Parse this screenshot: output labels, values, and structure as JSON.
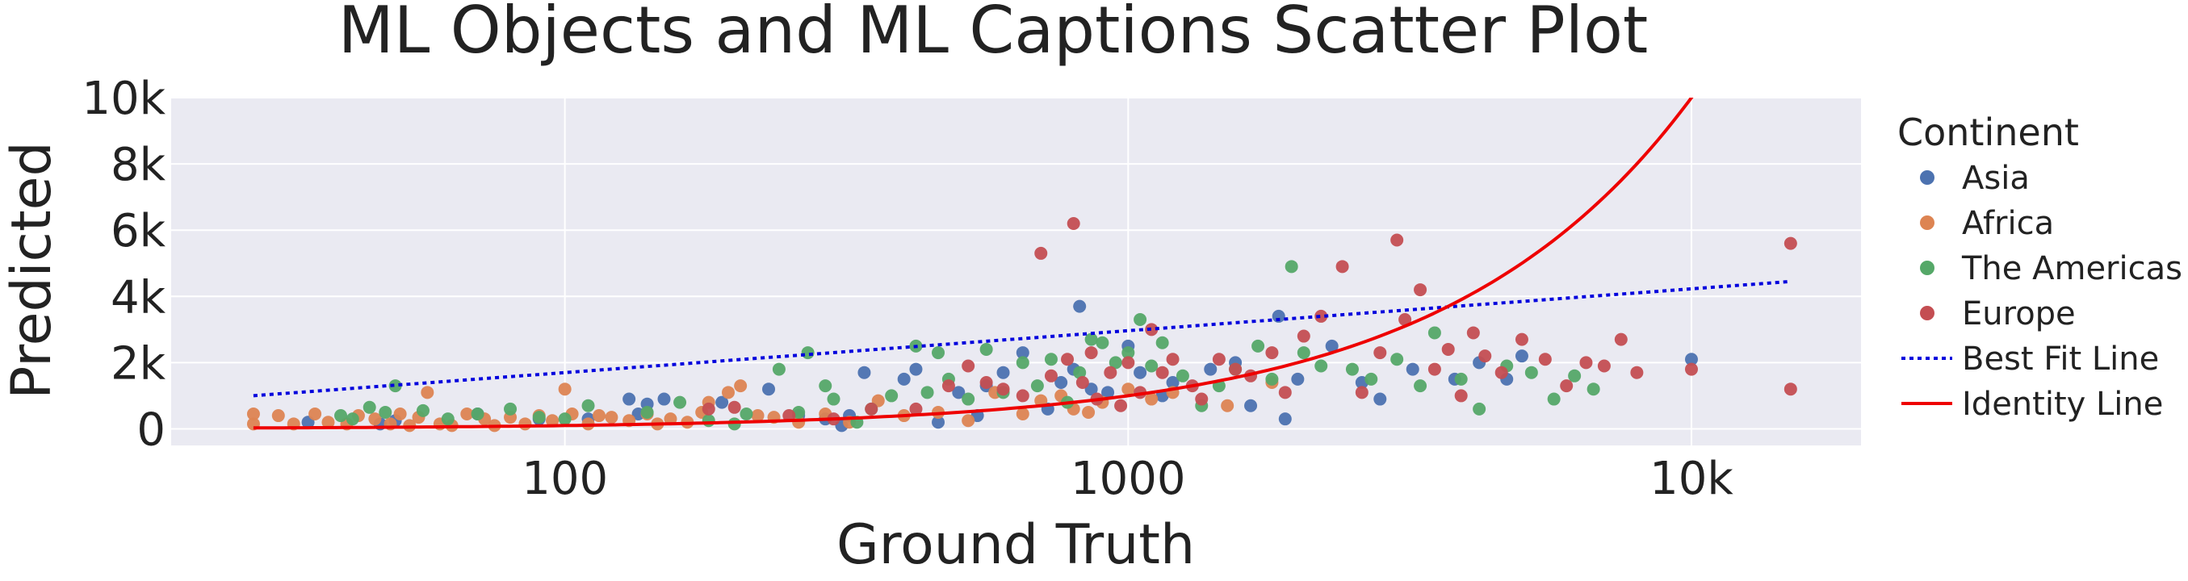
{
  "chart_data": {
    "type": "scatter",
    "title": "ML Objects and ML Captions Scatter Plot",
    "xlabel": "Ground Truth",
    "ylabel": "Predicted",
    "x_scale": "log",
    "xlim": [
      20,
      20000
    ],
    "ylim": [
      -500,
      10000
    ],
    "x_ticks": [
      {
        "value": 100,
        "label": "100"
      },
      {
        "value": 1000,
        "label": "1000"
      },
      {
        "value": 10000,
        "label": "10k"
      }
    ],
    "y_ticks": [
      {
        "value": 0,
        "label": "0"
      },
      {
        "value": 2000,
        "label": "2k"
      },
      {
        "value": 4000,
        "label": "4k"
      },
      {
        "value": 6000,
        "label": "6k"
      },
      {
        "value": 8000,
        "label": "8k"
      },
      {
        "value": 10000,
        "label": "10k"
      }
    ],
    "grid": true,
    "background": "#eaeaf2",
    "legend": {
      "title": "Continent",
      "placement": "right",
      "entries": [
        {
          "label": "Asia",
          "kind": "marker",
          "color": "#4c72b0"
        },
        {
          "label": "Africa",
          "kind": "marker",
          "color": "#dd8452"
        },
        {
          "label": "The Americas",
          "kind": "marker",
          "color": "#55a868"
        },
        {
          "label": "Europe",
          "kind": "marker",
          "color": "#c44e52"
        },
        {
          "label": "Best Fit Line",
          "kind": "dotted-line",
          "color": "#0000dd"
        },
        {
          "label": "Identity Line",
          "kind": "solid-line",
          "color": "#ee0000"
        }
      ]
    },
    "series": [
      {
        "name": "Asia",
        "color": "#4c72b0",
        "points": [
          [
            35,
            200
          ],
          [
            47,
            150
          ],
          [
            50,
            250
          ],
          [
            70,
            450
          ],
          [
            90,
            300
          ],
          [
            110,
            300
          ],
          [
            130,
            900
          ],
          [
            135,
            450
          ],
          [
            140,
            750
          ],
          [
            150,
            900
          ],
          [
            190,
            800
          ],
          [
            230,
            1200
          ],
          [
            260,
            400
          ],
          [
            290,
            300
          ],
          [
            310,
            100
          ],
          [
            320,
            400
          ],
          [
            340,
            1700
          ],
          [
            400,
            1500
          ],
          [
            420,
            1800
          ],
          [
            460,
            200
          ],
          [
            500,
            1100
          ],
          [
            540,
            400
          ],
          [
            560,
            1300
          ],
          [
            600,
            1700
          ],
          [
            650,
            2300
          ],
          [
            720,
            600
          ],
          [
            760,
            1400
          ],
          [
            800,
            1800
          ],
          [
            820,
            3700
          ],
          [
            860,
            1200
          ],
          [
            920,
            1100
          ],
          [
            1000,
            2500
          ],
          [
            1050,
            1700
          ],
          [
            1150,
            1000
          ],
          [
            1200,
            1400
          ],
          [
            1400,
            1800
          ],
          [
            1550,
            2000
          ],
          [
            1650,
            700
          ],
          [
            1850,
            3400
          ],
          [
            1900,
            300
          ],
          [
            2000,
            1500
          ],
          [
            2300,
            2500
          ],
          [
            2600,
            1400
          ],
          [
            2800,
            900
          ],
          [
            3200,
            1800
          ],
          [
            3800,
            1500
          ],
          [
            4200,
            2000
          ],
          [
            4700,
            1500
          ],
          [
            5000,
            2200
          ],
          [
            10000,
            2100
          ]
        ]
      },
      {
        "name": "Africa",
        "color": "#dd8452",
        "points": [
          [
            28,
            150
          ],
          [
            28,
            450
          ],
          [
            31,
            400
          ],
          [
            33,
            150
          ],
          [
            36,
            450
          ],
          [
            38,
            200
          ],
          [
            41,
            150
          ],
          [
            43,
            400
          ],
          [
            46,
            300
          ],
          [
            49,
            150
          ],
          [
            51,
            450
          ],
          [
            53,
            100
          ],
          [
            55,
            350
          ],
          [
            57,
            1100
          ],
          [
            60,
            150
          ],
          [
            63,
            100
          ],
          [
            67,
            450
          ],
          [
            72,
            300
          ],
          [
            75,
            100
          ],
          [
            80,
            350
          ],
          [
            85,
            150
          ],
          [
            90,
            400
          ],
          [
            95,
            250
          ],
          [
            100,
            1200
          ],
          [
            103,
            450
          ],
          [
            110,
            150
          ],
          [
            115,
            400
          ],
          [
            121,
            350
          ],
          [
            130,
            250
          ],
          [
            140,
            450
          ],
          [
            146,
            150
          ],
          [
            154,
            300
          ],
          [
            165,
            200
          ],
          [
            175,
            500
          ],
          [
            180,
            800
          ],
          [
            195,
            1100
          ],
          [
            205,
            1300
          ],
          [
            220,
            400
          ],
          [
            235,
            350
          ],
          [
            260,
            200
          ],
          [
            290,
            450
          ],
          [
            320,
            200
          ],
          [
            360,
            850
          ],
          [
            400,
            400
          ],
          [
            460,
            500
          ],
          [
            520,
            250
          ],
          [
            580,
            1100
          ],
          [
            650,
            450
          ],
          [
            700,
            850
          ],
          [
            760,
            1000
          ],
          [
            800,
            600
          ],
          [
            850,
            500
          ],
          [
            900,
            800
          ],
          [
            1000,
            1200
          ],
          [
            1100,
            900
          ],
          [
            1200,
            1100
          ],
          [
            1500,
            700
          ],
          [
            1800,
            1400
          ]
        ]
      },
      {
        "name": "The Americas",
        "color": "#55a868",
        "points": [
          [
            40,
            400
          ],
          [
            42,
            300
          ],
          [
            45,
            650
          ],
          [
            48,
            500
          ],
          [
            50,
            1300
          ],
          [
            56,
            550
          ],
          [
            62,
            300
          ],
          [
            70,
            450
          ],
          [
            80,
            600
          ],
          [
            90,
            350
          ],
          [
            100,
            300
          ],
          [
            110,
            700
          ],
          [
            140,
            500
          ],
          [
            160,
            800
          ],
          [
            180,
            250
          ],
          [
            200,
            150
          ],
          [
            210,
            450
          ],
          [
            240,
            1800
          ],
          [
            260,
            500
          ],
          [
            270,
            2300
          ],
          [
            290,
            1300
          ],
          [
            300,
            900
          ],
          [
            330,
            200
          ],
          [
            350,
            600
          ],
          [
            380,
            1000
          ],
          [
            420,
            2500
          ],
          [
            440,
            1100
          ],
          [
            460,
            2300
          ],
          [
            480,
            1500
          ],
          [
            520,
            900
          ],
          [
            560,
            2400
          ],
          [
            600,
            1100
          ],
          [
            650,
            2000
          ],
          [
            690,
            1300
          ],
          [
            730,
            2100
          ],
          [
            780,
            800
          ],
          [
            820,
            1700
          ],
          [
            860,
            2700
          ],
          [
            900,
            2600
          ],
          [
            950,
            2000
          ],
          [
            1000,
            2300
          ],
          [
            1050,
            3300
          ],
          [
            1100,
            1900
          ],
          [
            1150,
            2600
          ],
          [
            1250,
            1600
          ],
          [
            1350,
            700
          ],
          [
            1450,
            1300
          ],
          [
            1550,
            1800
          ],
          [
            1700,
            2500
          ],
          [
            1800,
            1500
          ],
          [
            1950,
            4900
          ],
          [
            2050,
            2300
          ],
          [
            2200,
            1900
          ],
          [
            2500,
            1800
          ],
          [
            2700,
            1500
          ],
          [
            3000,
            2100
          ],
          [
            3300,
            1300
          ],
          [
            3500,
            2900
          ],
          [
            3900,
            1500
          ],
          [
            4200,
            600
          ],
          [
            4700,
            1900
          ],
          [
            5200,
            1700
          ],
          [
            5700,
            900
          ],
          [
            6200,
            1600
          ],
          [
            6700,
            1200
          ]
        ]
      },
      {
        "name": "Europe",
        "color": "#c44e52",
        "points": [
          [
            180,
            600
          ],
          [
            200,
            650
          ],
          [
            250,
            400
          ],
          [
            300,
            300
          ],
          [
            350,
            600
          ],
          [
            420,
            600
          ],
          [
            480,
            1300
          ],
          [
            520,
            1900
          ],
          [
            560,
            1400
          ],
          [
            600,
            1200
          ],
          [
            650,
            1000
          ],
          [
            700,
            5300
          ],
          [
            730,
            1600
          ],
          [
            780,
            2100
          ],
          [
            800,
            6200
          ],
          [
            830,
            1400
          ],
          [
            860,
            2300
          ],
          [
            880,
            900
          ],
          [
            930,
            1700
          ],
          [
            970,
            700
          ],
          [
            1000,
            2000
          ],
          [
            1050,
            1100
          ],
          [
            1100,
            3000
          ],
          [
            1150,
            1700
          ],
          [
            1200,
            2100
          ],
          [
            1300,
            1300
          ],
          [
            1350,
            900
          ],
          [
            1450,
            2100
          ],
          [
            1550,
            1800
          ],
          [
            1650,
            1600
          ],
          [
            1800,
            2300
          ],
          [
            1900,
            1100
          ],
          [
            2050,
            2800
          ],
          [
            2200,
            3400
          ],
          [
            2400,
            4900
          ],
          [
            2600,
            1100
          ],
          [
            2800,
            2300
          ],
          [
            3000,
            5700
          ],
          [
            3100,
            3300
          ],
          [
            3300,
            4200
          ],
          [
            3500,
            1800
          ],
          [
            3700,
            2400
          ],
          [
            3900,
            1000
          ],
          [
            4100,
            2900
          ],
          [
            4300,
            2200
          ],
          [
            4600,
            1700
          ],
          [
            5000,
            2700
          ],
          [
            5500,
            2100
          ],
          [
            6000,
            1300
          ],
          [
            6500,
            2000
          ],
          [
            7000,
            1900
          ],
          [
            7500,
            2700
          ],
          [
            8000,
            1700
          ],
          [
            10000,
            1800
          ],
          [
            15000,
            5600
          ],
          [
            15000,
            1200
          ]
        ]
      }
    ],
    "lines": [
      {
        "name": "Best Fit Line",
        "style": "dotted",
        "color": "#0000dd",
        "points": [
          [
            28,
            1000
          ],
          [
            15000,
            4450
          ]
        ]
      },
      {
        "name": "Identity Line",
        "style": "solid",
        "color": "#ee0000",
        "function": "identity",
        "x_range": [
          28,
          13000
        ]
      }
    ]
  }
}
